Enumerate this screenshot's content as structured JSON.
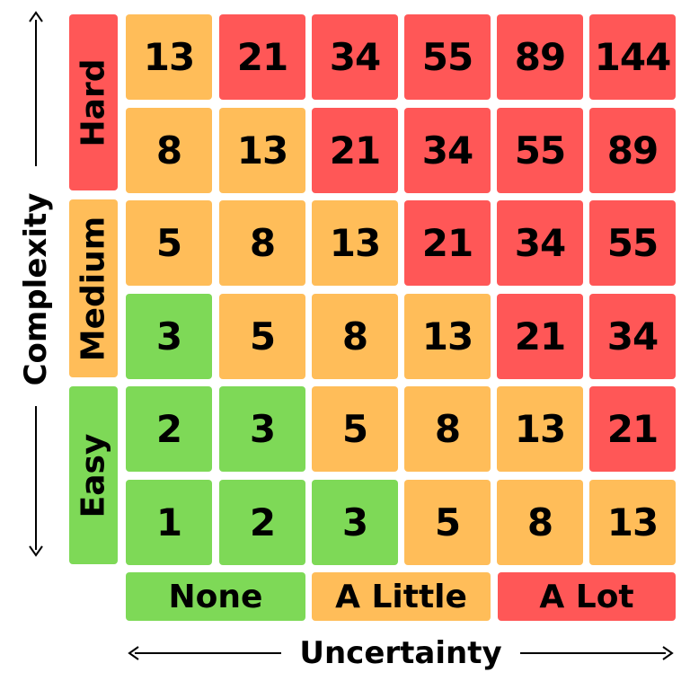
{
  "colors": {
    "green": "#7ed957",
    "orange": "#ffbd59",
    "red": "#ff5757"
  },
  "row_labels": [
    {
      "label": "Hard",
      "color": "red"
    },
    {
      "label": "Medium",
      "color": "orange"
    },
    {
      "label": "Easy",
      "color": "green"
    }
  ],
  "column_labels": [
    {
      "label": "None",
      "color": "green"
    },
    {
      "label": "A Little",
      "color": "orange"
    },
    {
      "label": "A Lot",
      "color": "red"
    }
  ],
  "axes": {
    "y_label": "Complexity",
    "x_label": "Uncertainty"
  },
  "matrix": [
    [
      {
        "value": "13",
        "color": "orange"
      },
      {
        "value": "21",
        "color": "red"
      },
      {
        "value": "34",
        "color": "red"
      },
      {
        "value": "55",
        "color": "red"
      },
      {
        "value": "89",
        "color": "red"
      },
      {
        "value": "144",
        "color": "red"
      }
    ],
    [
      {
        "value": "8",
        "color": "orange"
      },
      {
        "value": "13",
        "color": "orange"
      },
      {
        "value": "21",
        "color": "red"
      },
      {
        "value": "34",
        "color": "red"
      },
      {
        "value": "55",
        "color": "red"
      },
      {
        "value": "89",
        "color": "red"
      }
    ],
    [
      {
        "value": "5",
        "color": "orange"
      },
      {
        "value": "8",
        "color": "orange"
      },
      {
        "value": "13",
        "color": "orange"
      },
      {
        "value": "21",
        "color": "red"
      },
      {
        "value": "34",
        "color": "red"
      },
      {
        "value": "55",
        "color": "red"
      }
    ],
    [
      {
        "value": "3",
        "color": "green"
      },
      {
        "value": "5",
        "color": "orange"
      },
      {
        "value": "8",
        "color": "orange"
      },
      {
        "value": "13",
        "color": "orange"
      },
      {
        "value": "21",
        "color": "red"
      },
      {
        "value": "34",
        "color": "red"
      }
    ],
    [
      {
        "value": "2",
        "color": "green"
      },
      {
        "value": "3",
        "color": "green"
      },
      {
        "value": "5",
        "color": "orange"
      },
      {
        "value": "8",
        "color": "orange"
      },
      {
        "value": "13",
        "color": "orange"
      },
      {
        "value": "21",
        "color": "red"
      }
    ],
    [
      {
        "value": "1",
        "color": "green"
      },
      {
        "value": "2",
        "color": "green"
      },
      {
        "value": "3",
        "color": "green"
      },
      {
        "value": "5",
        "color": "orange"
      },
      {
        "value": "8",
        "color": "orange"
      },
      {
        "value": "13",
        "color": "orange"
      }
    ]
  ]
}
